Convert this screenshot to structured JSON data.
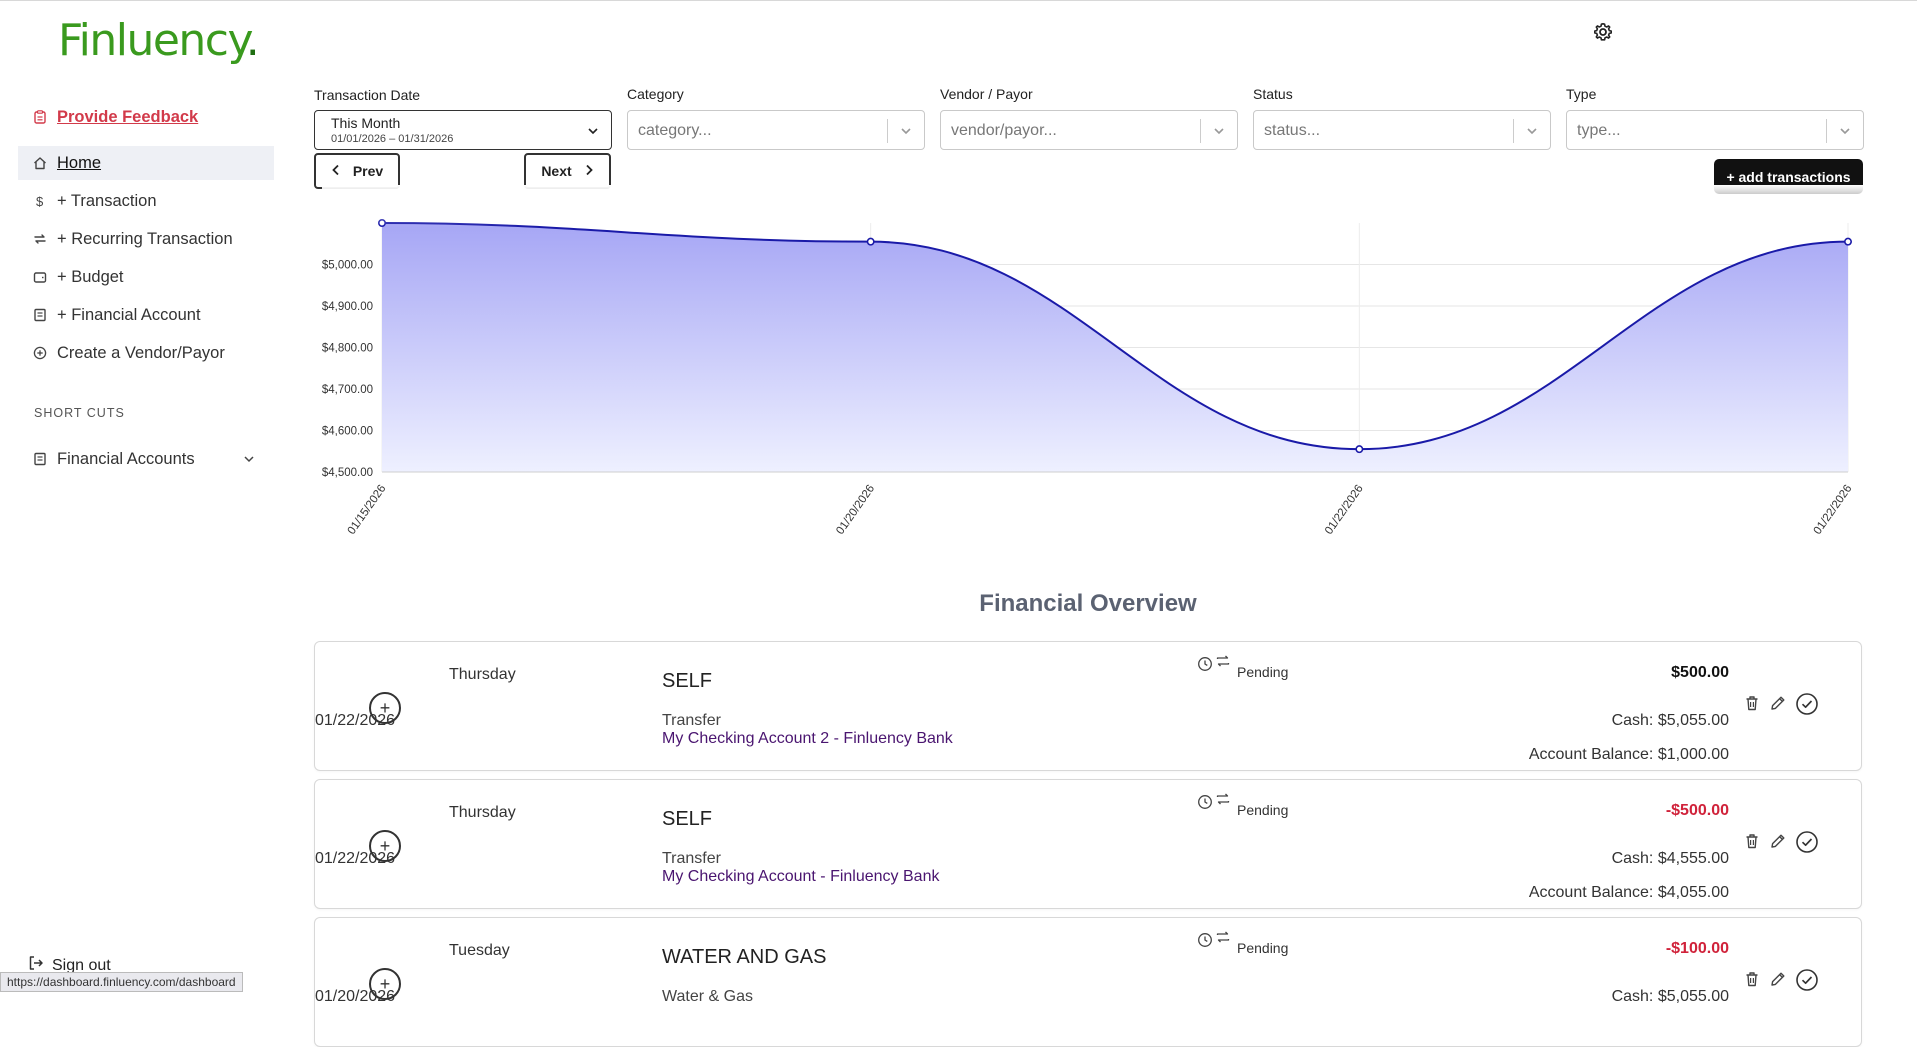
{
  "brand": {
    "logo": "Finluency",
    "logo_dot": "."
  },
  "sidebar": {
    "feedback": "Provide Feedback",
    "items": [
      {
        "label": "Home",
        "icon": "home-icon"
      },
      {
        "label": "+ Transaction",
        "icon": "dollar-icon"
      },
      {
        "label": "+ Recurring Transaction",
        "icon": "repeat-icon"
      },
      {
        "label": "+ Budget",
        "icon": "wallet-icon"
      },
      {
        "label": "+ Financial Account",
        "icon": "bank-icon"
      },
      {
        "label": "Create a Vendor/Payor",
        "icon": "plus-circle-icon"
      }
    ],
    "shortcuts_heading": "SHORT CUTS",
    "financial_accounts": "Financial Accounts",
    "signout": "Sign out"
  },
  "status_url": "https://dashboard.finluency.com/dashboard",
  "filters": {
    "date_label": "Transaction Date",
    "date_main": "This Month",
    "date_range": "01/01/2026 – 01/31/2026",
    "category_label": "Category",
    "category_placeholder": "category...",
    "vendor_label": "Vendor / Payor",
    "vendor_placeholder": "vendor/payor...",
    "status_label": "Status",
    "status_placeholder": "status...",
    "type_label": "Type",
    "type_placeholder": "type..."
  },
  "nav": {
    "prev": "Prev",
    "next": "Next"
  },
  "add_button": "+ add transactions",
  "chart_data": {
    "type": "area",
    "x": [
      "01/15/2026",
      "01/20/2026",
      "01/22/2026",
      "01/22/2026"
    ],
    "y": [
      5100,
      5055,
      4555,
      5055
    ],
    "ylim": [
      4500,
      5100
    ],
    "yticks": [
      "$4,500.00",
      "$4,600.00",
      "$4,700.00",
      "$4,800.00",
      "$4,900.00",
      "$5,000.00"
    ],
    "grid": true,
    "colors": {
      "line": "#1a1aa8",
      "fill_top": "#a6a6f5",
      "fill_bottom": "#eef0ff"
    }
  },
  "overview_title": "Financial Overview",
  "transactions": [
    {
      "day": "Thursday",
      "date": "01/22/2026",
      "payee": "SELF",
      "category": "Transfer",
      "account": "My Checking Account 2 - Finluency Bank",
      "status": "Pending",
      "amount": "$500.00",
      "negative": false,
      "cash": "Cash: $5,055.00",
      "balance": "Account Balance: $1,000.00"
    },
    {
      "day": "Thursday",
      "date": "01/22/2026",
      "payee": "SELF",
      "category": "Transfer",
      "account": "My Checking Account - Finluency Bank",
      "status": "Pending",
      "amount": "-$500.00",
      "negative": true,
      "cash": "Cash: $4,555.00",
      "balance": "Account Balance: $4,055.00"
    },
    {
      "day": "Tuesday",
      "date": "01/20/2026",
      "payee": "WATER AND GAS",
      "category": "Water & Gas",
      "account": "",
      "status": "Pending",
      "amount": "-$100.00",
      "negative": true,
      "cash": "Cash: $5,055.00",
      "balance": ""
    }
  ]
}
